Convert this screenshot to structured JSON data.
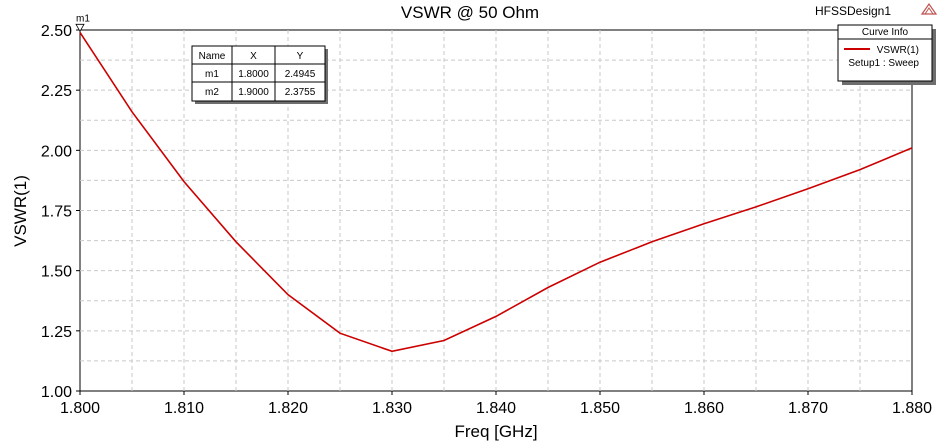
{
  "window": {
    "design_name": "HFSSDesign1",
    "logo_icon": "ansys-triangle-icon"
  },
  "chart_data": {
    "type": "line",
    "title": "VSWR @ 50 Ohm",
    "xlabel": "Freq [GHz]",
    "ylabel": "VSWR(1)",
    "xlim": [
      1.8,
      1.88
    ],
    "ylim": [
      1.0,
      2.5
    ],
    "x_ticks": [
      "1.800",
      "1.810",
      "1.820",
      "1.830",
      "1.840",
      "1.850",
      "1.860",
      "1.870",
      "1.880"
    ],
    "y_ticks": [
      "1.00",
      "1.25",
      "1.50",
      "1.75",
      "2.00",
      "2.25",
      "2.50"
    ],
    "grid": true,
    "series": [
      {
        "name": "VSWR(1)",
        "sublabel": "Setup1 : Sweep",
        "color": "#cc0000",
        "x": [
          1.8,
          1.805,
          1.81,
          1.815,
          1.82,
          1.825,
          1.83,
          1.835,
          1.84,
          1.845,
          1.85,
          1.855,
          1.86,
          1.865,
          1.87,
          1.875,
          1.88
        ],
        "y": [
          2.49,
          2.16,
          1.87,
          1.62,
          1.4,
          1.24,
          1.165,
          1.21,
          1.31,
          1.43,
          1.535,
          1.62,
          1.695,
          1.765,
          1.84,
          1.92,
          2.01
        ]
      }
    ],
    "legend": {
      "title": "Curve Info",
      "position": "top-right"
    },
    "markers": [
      {
        "name": "m1",
        "x": 1.8,
        "y": 2.4945,
        "show_on_plot": true
      }
    ],
    "marker_table": {
      "columns": [
        "Name",
        "X",
        "Y"
      ],
      "rows": [
        [
          "m1",
          "1.8000",
          "2.4945"
        ],
        [
          "m2",
          "1.9000",
          "2.3755"
        ]
      ]
    }
  }
}
